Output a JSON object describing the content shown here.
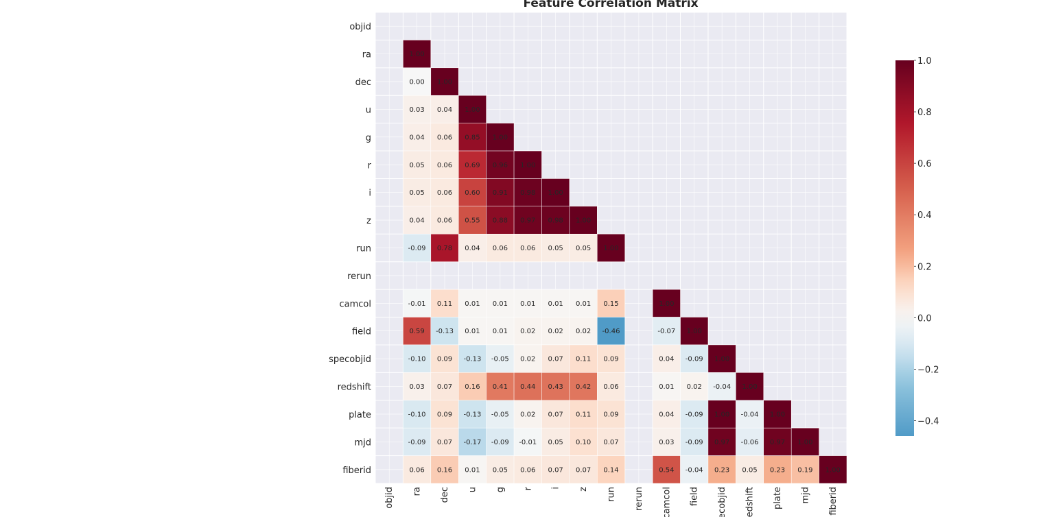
{
  "chart_data": {
    "type": "heatmap",
    "title": "Feature Correlation Matrix",
    "variables": [
      "objid",
      "ra",
      "dec",
      "u",
      "g",
      "r",
      "i",
      "z",
      "run",
      "rerun",
      "camcol",
      "field",
      "specobjid",
      "redshift",
      "plate",
      "mjd",
      "fiberid"
    ],
    "x_tick_labels": [
      "objid",
      "ra",
      "dec",
      "u",
      "g",
      "r",
      "i",
      "z",
      "run",
      "rerun",
      "camcol",
      "field",
      "ecobjid",
      "redshift",
      "plate",
      "mjd",
      "fiberid"
    ],
    "mask": "upper-triangle (diagonal shown)",
    "matrix": [
      [
        null
      ],
      [
        null,
        1.0
      ],
      [
        null,
        0.0,
        1.0
      ],
      [
        null,
        0.03,
        0.04,
        1.0
      ],
      [
        null,
        0.04,
        0.06,
        0.85,
        1.0
      ],
      [
        null,
        0.05,
        0.06,
        0.69,
        0.96,
        1.0
      ],
      [
        null,
        0.05,
        0.06,
        0.6,
        0.91,
        0.98,
        1.0
      ],
      [
        null,
        0.04,
        0.06,
        0.55,
        0.88,
        0.97,
        0.98,
        1.0
      ],
      [
        null,
        -0.09,
        0.78,
        0.04,
        0.06,
        0.06,
        0.05,
        0.05,
        1.0
      ],
      [
        null,
        null,
        null,
        null,
        null,
        null,
        null,
        null,
        null,
        null
      ],
      [
        null,
        -0.01,
        0.11,
        0.01,
        0.01,
        0.01,
        0.01,
        0.01,
        0.15,
        null,
        1.0
      ],
      [
        null,
        0.59,
        -0.13,
        0.01,
        0.01,
        0.02,
        0.02,
        0.02,
        -0.46,
        null,
        -0.07,
        1.0
      ],
      [
        null,
        -0.1,
        0.09,
        -0.13,
        -0.05,
        0.02,
        0.07,
        0.11,
        0.09,
        null,
        0.04,
        -0.09,
        1.0
      ],
      [
        null,
        0.03,
        0.07,
        0.16,
        0.41,
        0.44,
        0.43,
        0.42,
        0.06,
        null,
        0.01,
        0.02,
        -0.04,
        1.0
      ],
      [
        null,
        -0.1,
        0.09,
        -0.13,
        -0.05,
        0.02,
        0.07,
        0.11,
        0.09,
        null,
        0.04,
        -0.09,
        1.0,
        -0.04,
        1.0
      ],
      [
        null,
        -0.09,
        0.07,
        -0.17,
        -0.09,
        -0.01,
        0.05,
        0.1,
        0.07,
        null,
        0.03,
        -0.09,
        0.97,
        -0.06,
        0.97,
        1.0
      ],
      [
        null,
        0.06,
        0.16,
        0.01,
        0.05,
        0.06,
        0.07,
        0.07,
        0.14,
        null,
        0.54,
        -0.04,
        0.23,
        0.05,
        0.23,
        0.19,
        1.0
      ]
    ],
    "value_format": "0.00",
    "colormap": "RdBu_r",
    "colors": {
      "neg": "#053061",
      "mid": "#f7f7f7",
      "pos": "#67001f",
      "background": "#eaeaf2",
      "grid": "#ffffff"
    },
    "center": 0.0,
    "colorbar": {
      "min": -0.46,
      "max": 1.0,
      "ticks": [
        -0.4,
        -0.2,
        0.0,
        0.2,
        0.4,
        0.6,
        0.8,
        1.0
      ],
      "tick_labels": [
        "−0.4",
        "−0.2",
        "0.0",
        "0.2",
        "0.4",
        "0.6",
        "0.8",
        "1.0"
      ]
    },
    "xlabel": "",
    "ylabel": ""
  }
}
